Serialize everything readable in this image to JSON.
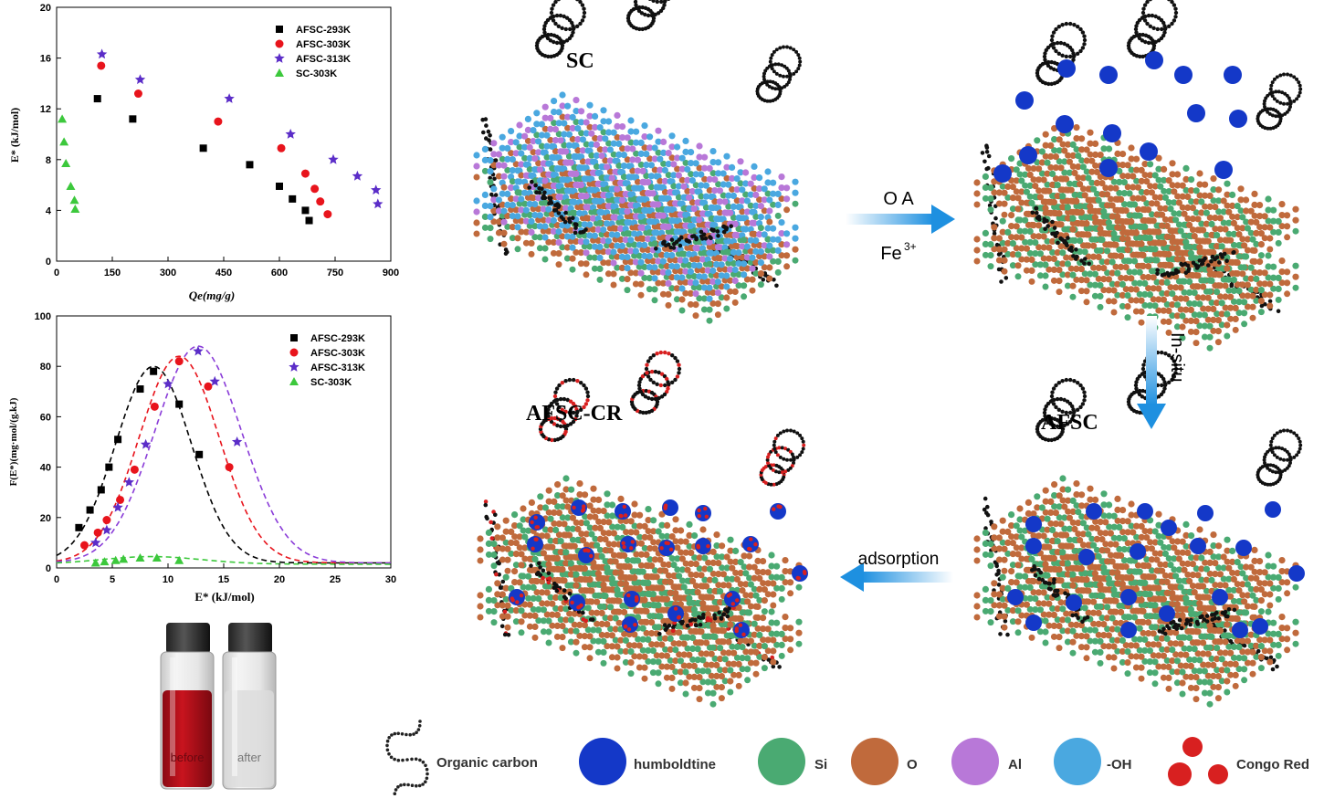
{
  "chart_data": [
    {
      "type": "scatter",
      "ylabel": "E* (kJ/mol)",
      "xlabel": "Qe(mg/g)",
      "xlim": [
        0,
        900
      ],
      "ylim": [
        0,
        20
      ],
      "xticks": [
        "0",
        "150",
        "300",
        "450",
        "600",
        "750",
        "900"
      ],
      "yticks": [
        "0",
        "4",
        "8",
        "12",
        "16",
        "20"
      ],
      "legend_position": "top-right",
      "series": [
        {
          "name": "AFSC-293K",
          "color": "#000000",
          "marker": "square",
          "points": [
            [
              110,
              12.8
            ],
            [
              205,
              11.2
            ],
            [
              395,
              8.9
            ],
            [
              520,
              7.6
            ],
            [
              600,
              5.9
            ],
            [
              635,
              4.9
            ],
            [
              670,
              4.0
            ],
            [
              680,
              3.2
            ]
          ]
        },
        {
          "name": "AFSC-303K",
          "color": "#e8141c",
          "marker": "circle",
          "points": [
            [
              120,
              15.4
            ],
            [
              220,
              13.2
            ],
            [
              435,
              11.0
            ],
            [
              605,
              8.9
            ],
            [
              670,
              6.9
            ],
            [
              695,
              5.7
            ],
            [
              710,
              4.7
            ],
            [
              730,
              3.7
            ]
          ]
        },
        {
          "name": "AFSC-313K",
          "color": "#5b2dc8",
          "marker": "star",
          "points": [
            [
              122,
              16.3
            ],
            [
              225,
              14.3
            ],
            [
              465,
              12.8
            ],
            [
              630,
              10.0
            ],
            [
              745,
              8.0
            ],
            [
              810,
              6.7
            ],
            [
              860,
              5.6
            ],
            [
              865,
              4.5
            ]
          ]
        },
        {
          "name": "SC-303K",
          "color": "#3cc83c",
          "marker": "triangle",
          "points": [
            [
              15,
              11.2
            ],
            [
              20,
              9.4
            ],
            [
              25,
              7.7
            ],
            [
              38,
              5.9
            ],
            [
              48,
              4.8
            ],
            [
              50,
              4.1
            ]
          ]
        }
      ]
    },
    {
      "type": "scatter",
      "ylabel": "F(E*)(mg·mol/(g.kJ)",
      "xlabel": "E* (kJ/mol)",
      "xlim": [
        0,
        30
      ],
      "ylim": [
        0,
        100
      ],
      "xticks": [
        "0",
        "5",
        "10",
        "15",
        "20",
        "25",
        "30"
      ],
      "yticks": [
        "0",
        "20",
        "40",
        "60",
        "80",
        "100"
      ],
      "legend_position": "top-right",
      "series": [
        {
          "name": "AFSC-293K",
          "color": "#000000",
          "marker": "square",
          "points": [
            [
              2,
              16
            ],
            [
              3,
              23
            ],
            [
              4,
              31
            ],
            [
              4.7,
              40
            ],
            [
              5.5,
              51
            ],
            [
              7.5,
              71
            ],
            [
              8.7,
              78
            ],
            [
              11,
              65
            ],
            [
              12.8,
              45
            ]
          ],
          "fit": {
            "mu": 8.7,
            "sigma": 3.4,
            "amp": 78,
            "base": 2,
            "color": "#000000"
          }
        },
        {
          "name": "AFSC-303K",
          "color": "#e8141c",
          "marker": "circle",
          "points": [
            [
              2.5,
              9
            ],
            [
              3.7,
              14
            ],
            [
              4.5,
              19
            ],
            [
              5.7,
              27
            ],
            [
              7,
              39
            ],
            [
              8.8,
              64
            ],
            [
              11,
              82
            ],
            [
              13.6,
              72
            ],
            [
              15.5,
              40
            ]
          ],
          "fit": {
            "mu": 11.0,
            "sigma": 3.6,
            "amp": 82,
            "base": 2,
            "color": "#e8141c"
          }
        },
        {
          "name": "AFSC-313K",
          "color": "#5b2dc8",
          "marker": "star",
          "points": [
            [
              3.5,
              10
            ],
            [
              4.5,
              15
            ],
            [
              5.5,
              24
            ],
            [
              6.5,
              34
            ],
            [
              8,
              49
            ],
            [
              10,
              73
            ],
            [
              12.7,
              86
            ],
            [
              14.2,
              74
            ],
            [
              16.2,
              50
            ]
          ],
          "fit": {
            "mu": 12.7,
            "sigma": 3.9,
            "amp": 86,
            "base": 2,
            "color": "#8a3cd8"
          }
        },
        {
          "name": "SC-303K",
          "color": "#3cc83c",
          "marker": "triangle",
          "points": [
            [
              3.5,
              2
            ],
            [
              4.3,
              2.5
            ],
            [
              5.3,
              3
            ],
            [
              6,
              3.5
            ],
            [
              7.5,
              4
            ],
            [
              9,
              4
            ],
            [
              11,
              3
            ]
          ],
          "fit": {
            "mu": 8.5,
            "sigma": 4.5,
            "amp": 3,
            "base": 1.5,
            "color": "#3cc83c"
          }
        }
      ]
    }
  ],
  "photo": {
    "before_label": "before",
    "after_label": "after"
  },
  "scheme": {
    "sc_label": "SC",
    "afsc_label": "AFSC",
    "afsc_cr_label": "AFSC-CR",
    "arrow1_top": "O  A",
    "arrow1_bottom": "Fe",
    "arrow1_bottom_sup": "3+",
    "arrow2_label": "In-situ",
    "arrow3_label": "adsorption"
  },
  "legend": {
    "organic_carbon": "Organic carbon",
    "humboldtine": "humboldtine",
    "si": "Si",
    "o": "O",
    "al": "Al",
    "oh": "-OH",
    "congo_red": "Congo Red"
  },
  "colors": {
    "si": "#4aaa72",
    "o": "#c06a3c",
    "al": "#b878d8",
    "oh": "#4aa8e0",
    "humboldtine": "#1438c8",
    "congo": "#d82020",
    "carbon": "#111111",
    "arrow": "#1e90e0"
  }
}
